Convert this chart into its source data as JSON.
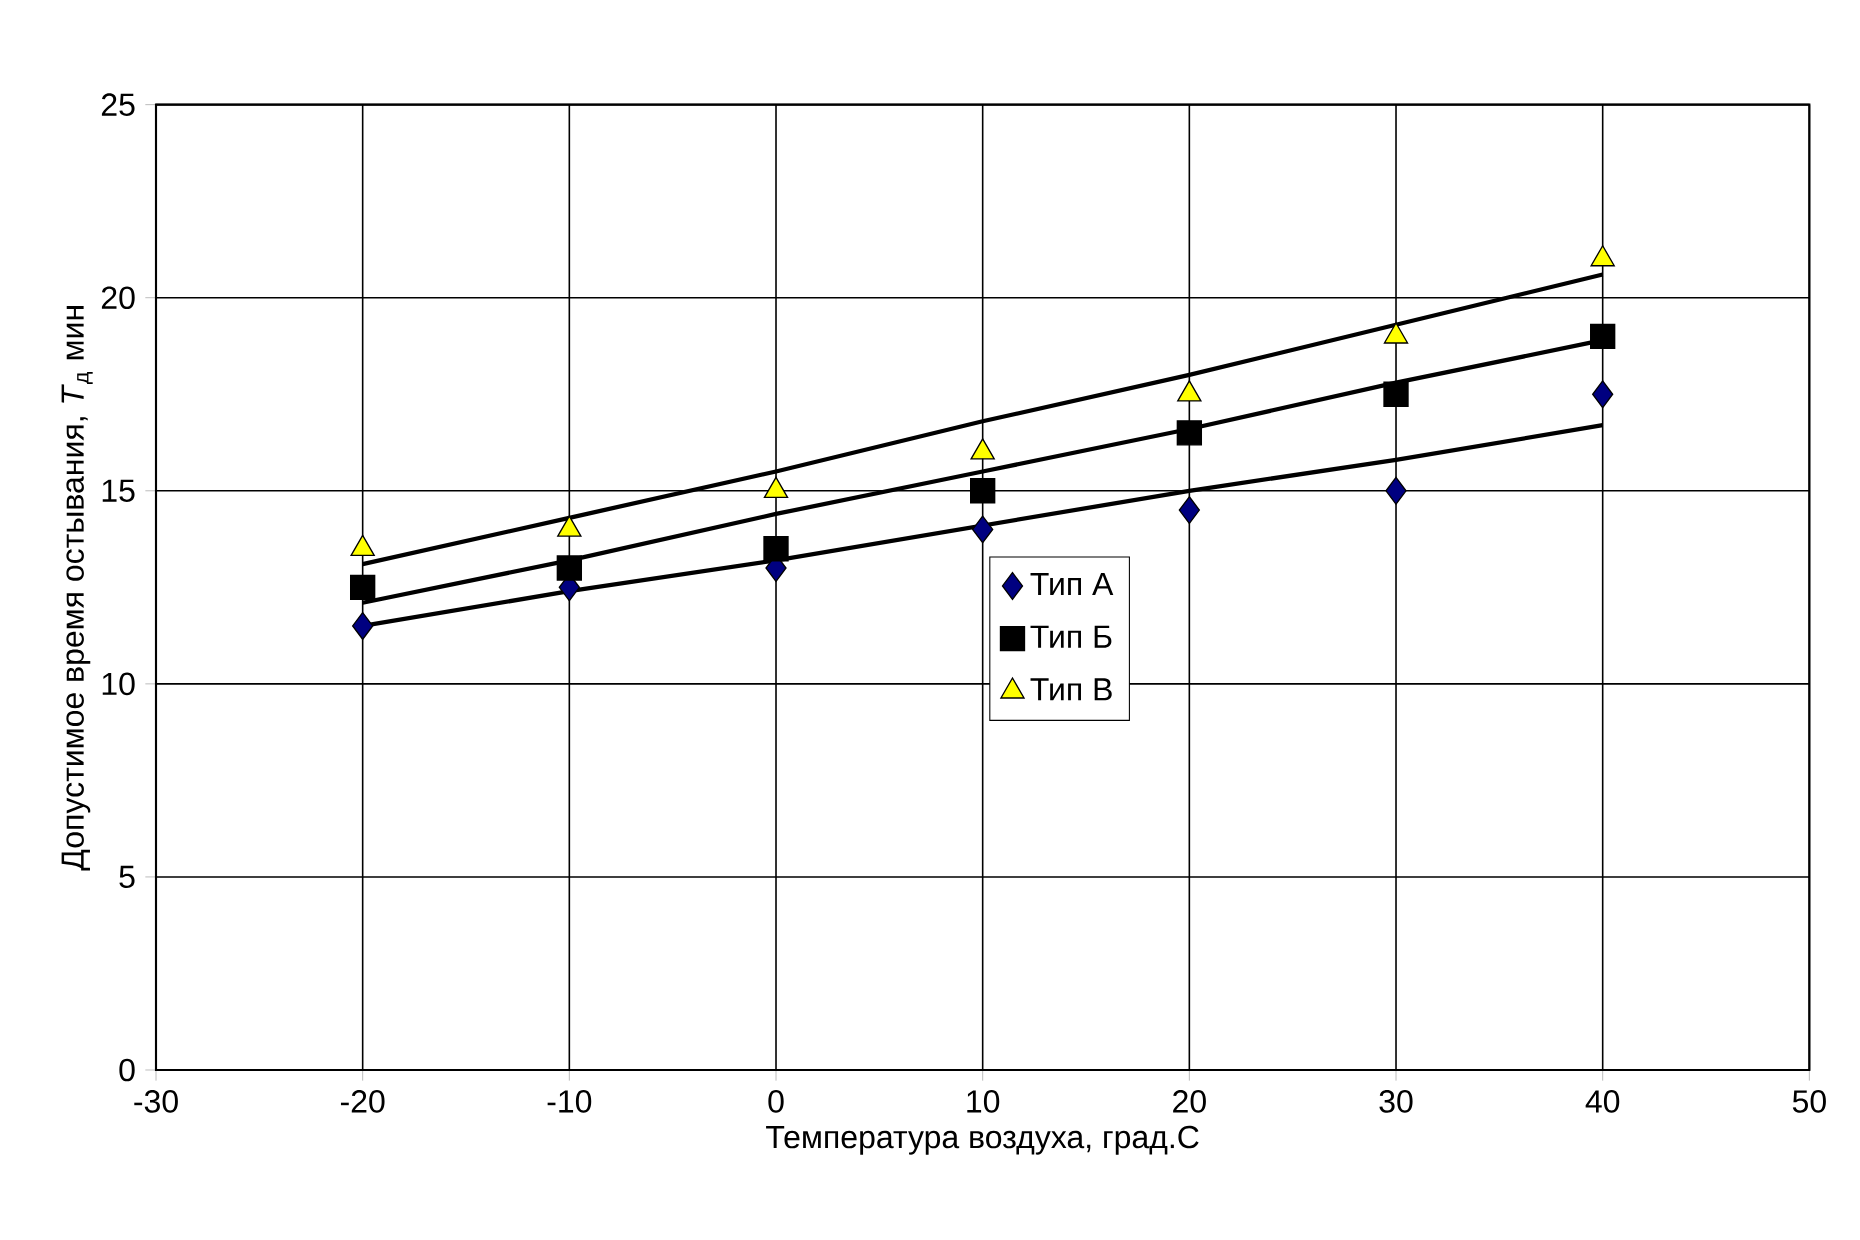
{
  "chart_data": {
    "type": "scatter",
    "xlabel": "Температура воздуха, град.С",
    "ylabel": "Допустимое время остывания, *T*$_{д}$ мин",
    "x": [
      -20,
      -10,
      0,
      10,
      20,
      30,
      40
    ],
    "series": [
      {
        "name": "Тип А",
        "color": "#000080",
        "marker": "diamond",
        "values": [
          11.5,
          12.5,
          13,
          14,
          14.5,
          15,
          17.5
        ]
      },
      {
        "name": "Тип Б",
        "color": "#000000",
        "marker": "square",
        "values": [
          12.5,
          13,
          13.5,
          15,
          16.5,
          17.5,
          19
        ]
      },
      {
        "name": "Тип В",
        "color": "#ffff00",
        "marker": "triangle",
        "values": [
          13.5,
          14,
          15,
          16,
          17.5,
          19,
          21
        ]
      },
      {
        "type": "line",
        "color": "#000000",
        "line_style": "solid",
        "marker": "none",
        "values": [
          11.5,
          12.4,
          13.2,
          14.1,
          15.0,
          15.8,
          16.7
        ]
      },
      {
        "type": "line",
        "color": "#000000",
        "line_style": "solid",
        "marker": "none",
        "values": [
          12.1,
          13.2,
          14.4,
          15.5,
          16.6,
          17.8,
          18.9
        ]
      },
      {
        "type": "line",
        "color": "#000000",
        "line_style": "solid",
        "marker": "none",
        "values": [
          13.1,
          14.3,
          15.5,
          16.8,
          18.0,
          19.3,
          20.6
        ]
      }
    ],
    "xlim": [
      -30,
      50
    ],
    "xticks": [
      -30,
      -20,
      -10,
      0,
      10,
      20,
      30,
      40,
      50
    ],
    "ylim": [
      0,
      25
    ],
    "yticks": [
      0,
      5,
      10,
      15,
      20,
      25
    ],
    "grid": true,
    "legend": "center"
  }
}
